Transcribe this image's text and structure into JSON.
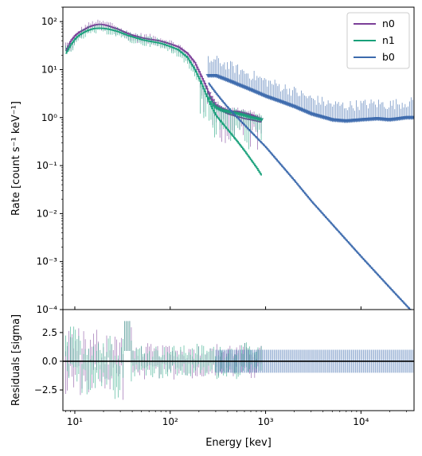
{
  "chart_data": {
    "type": "line",
    "xlabel": "Energy [kev]",
    "ylabel_top": "Rate [count s$^{-1}$ keV$^{-1}$]",
    "ylabel_top_display": "Rate [count s⁻¹ keV⁻¹]",
    "ylabel_bottom": "Residuals [sigma]",
    "xscale": "log",
    "yscale_top": "log",
    "xlim": [
      7.5,
      36000
    ],
    "ylim_top": [
      0.0001,
      200
    ],
    "ylim_bottom": [
      -4.3,
      4.5
    ],
    "x_tick_labels": [
      "10¹",
      "10²",
      "10³",
      "10⁴"
    ],
    "x_tick_values": [
      10,
      100,
      1000,
      10000
    ],
    "y_top_tick_labels": [
      "10⁻⁴",
      "10⁻³",
      "10⁻²",
      "10⁻¹",
      "10⁰",
      "10¹",
      "10²"
    ],
    "y_top_tick_values": [
      0.0001,
      0.001,
      0.01,
      0.1,
      1,
      10,
      100
    ],
    "y_bottom_tick_labels": [
      "−2.5",
      "0.0",
      "2.5"
    ],
    "y_bottom_tick_values": [
      -2.5,
      0,
      2.5
    ],
    "legend_position": "top-right",
    "series": [
      {
        "name": "n0",
        "color": "#7b3f98",
        "model_x": [
          8,
          9,
          10,
          11,
          12,
          13,
          14,
          15,
          16,
          17,
          18,
          20,
          22,
          25,
          28,
          32,
          36,
          40,
          50,
          60,
          70,
          80,
          100,
          120,
          150,
          180,
          200,
          230,
          260,
          290,
          320,
          400,
          500,
          600,
          700,
          800,
          900
        ],
        "model_y": [
          25,
          40,
          52,
          60,
          66,
          72,
          78,
          82,
          85,
          87,
          88,
          86,
          82,
          75,
          70,
          62,
          56,
          52,
          46,
          43,
          41,
          39,
          34,
          30,
          22,
          14,
          9,
          5,
          2.7,
          1.8,
          1.5,
          1.2,
          1.05,
          0.95,
          0.9,
          0.85,
          0.8
        ],
        "data_x": [
          9,
          11,
          13,
          15,
          17,
          20,
          24,
          28,
          33,
          40,
          50,
          65,
          80,
          100,
          130,
          170,
          220,
          270,
          300,
          350,
          420,
          500,
          600,
          700,
          800,
          900
        ],
        "data_y": [
          30,
          55,
          70,
          80,
          85,
          82,
          78,
          65,
          55,
          48,
          45,
          42,
          38,
          33,
          26,
          14,
          6,
          2.5,
          1.8,
          1.5,
          1.3,
          1.3,
          1.2,
          1.1,
          1.0,
          0.9
        ]
      },
      {
        "name": "n1",
        "color": "#18a07a",
        "model_x": [
          8,
          9,
          10,
          11,
          12,
          13,
          14,
          15,
          16,
          18,
          20,
          22,
          25,
          28,
          32,
          36,
          40,
          50,
          60,
          70,
          80,
          100,
          120,
          150,
          180,
          200,
          230,
          260,
          300,
          400,
          500,
          600,
          700,
          800,
          900
        ],
        "model_y": [
          22,
          33,
          44,
          52,
          58,
          63,
          67,
          70,
          72,
          73,
          72,
          70,
          66,
          62,
          56,
          51,
          48,
          42,
          39,
          37,
          35,
          30,
          26,
          18,
          10,
          6.5,
          3.4,
          1.9,
          1.1,
          0.55,
          0.32,
          0.2,
          0.13,
          0.09,
          0.062
        ],
        "data_x": [
          9,
          11,
          13,
          15,
          17,
          20,
          24,
          28,
          33,
          40,
          50,
          65,
          80,
          100,
          130,
          170,
          220,
          270,
          300,
          350,
          420,
          500,
          600,
          700,
          800,
          900
        ],
        "data_y": [
          28,
          48,
          60,
          68,
          72,
          72,
          68,
          60,
          52,
          45,
          41,
          38,
          34,
          29,
          22,
          11,
          4.5,
          2.0,
          1.6,
          1.4,
          1.3,
          1.2,
          1.1,
          1.0,
          0.95,
          0.9
        ]
      },
      {
        "name": "b0",
        "color": "#3c6aad",
        "model_x": [
          250,
          300,
          350,
          400,
          500,
          700,
          1000,
          2000,
          3000,
          5000,
          10000,
          20000,
          36000
        ],
        "model_y": [
          5.2,
          3.2,
          2.2,
          1.6,
          1.0,
          0.5,
          0.24,
          0.048,
          0.018,
          0.0058,
          0.00125,
          0.00028,
          8e-05
        ],
        "data_x": [
          300,
          400,
          500,
          700,
          1000,
          1500,
          2000,
          3000,
          5000,
          7000,
          10000,
          15000,
          20000,
          30000,
          36000
        ],
        "data_y": [
          7.5,
          6,
          5,
          3.8,
          2.8,
          2.1,
          1.7,
          1.2,
          0.9,
          0.85,
          0.9,
          0.95,
          0.9,
          1.0,
          1.0
        ]
      }
    ]
  }
}
